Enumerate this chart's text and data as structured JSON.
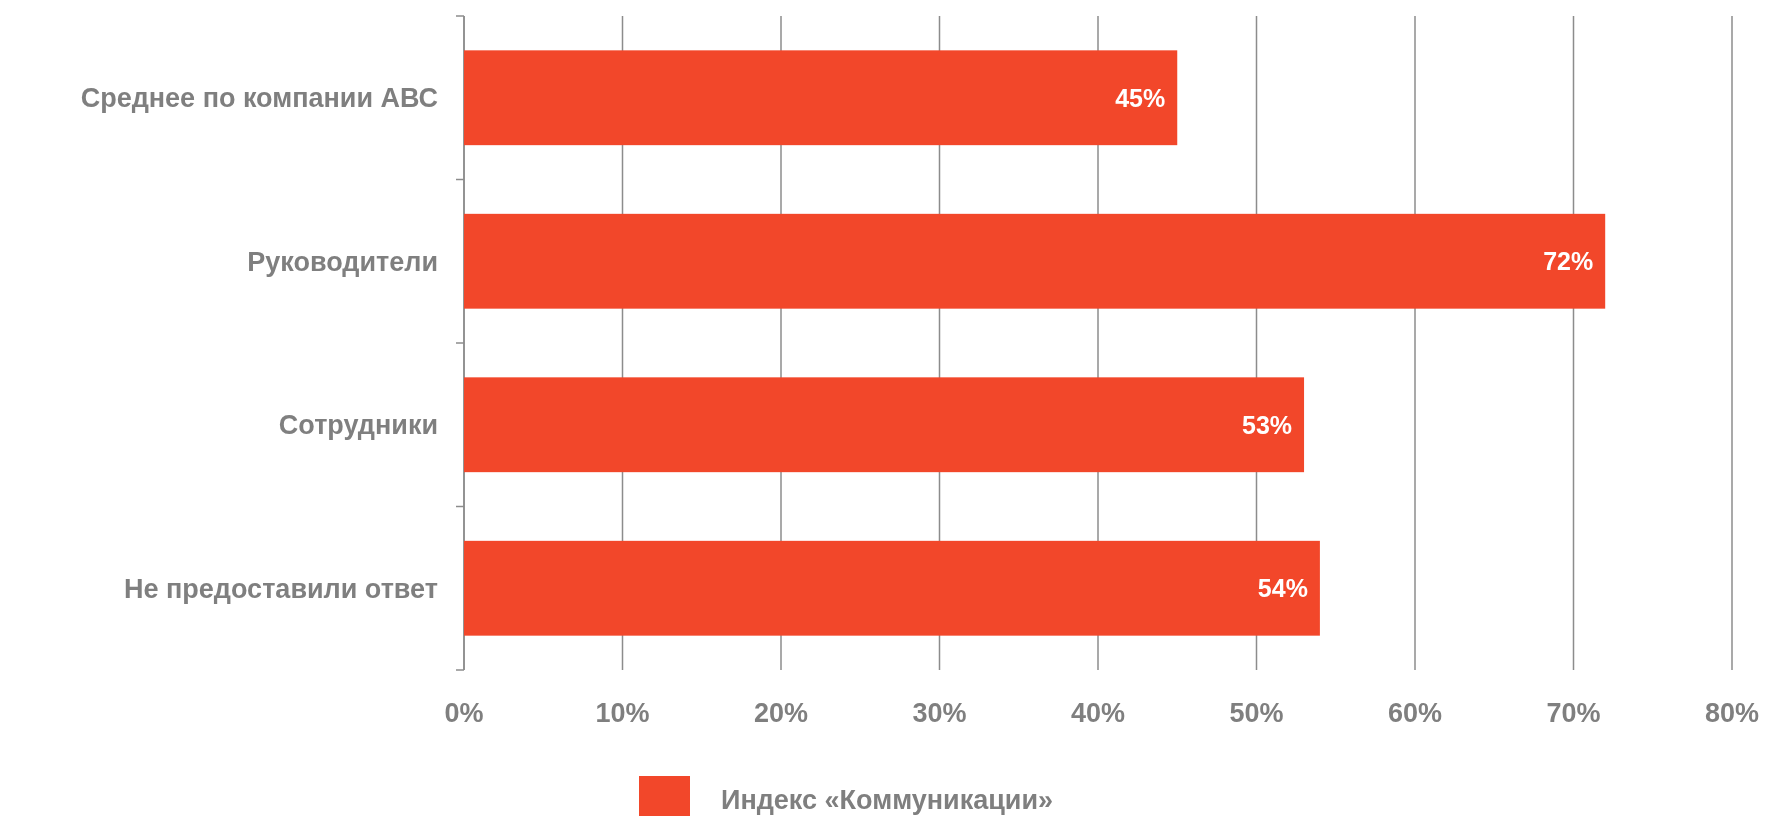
{
  "chart_data": {
    "type": "bar",
    "orientation": "horizontal",
    "categories": [
      "Среднее по компании АВС",
      "Руководители",
      "Сотрудники",
      "Не предоставили ответ"
    ],
    "series": [
      {
        "name": "Индекс «Коммуникации»",
        "color": "#f2472a",
        "values": [
          45,
          72,
          53,
          54
        ]
      }
    ],
    "xlim": [
      0,
      80
    ],
    "xticks": [
      {
        "value": 0,
        "label": "0%"
      },
      {
        "value": 10,
        "label": "10%"
      },
      {
        "value": 20,
        "label": "20%"
      },
      {
        "value": 30,
        "label": "30%"
      },
      {
        "value": 40,
        "label": "40%"
      },
      {
        "value": 50,
        "label": "50%"
      },
      {
        "value": 60,
        "label": "60%"
      },
      {
        "value": 70,
        "label": "70%"
      },
      {
        "value": 80,
        "label": "80%"
      }
    ],
    "value_labels": [
      "45%",
      "72%",
      "53%",
      "54%"
    ],
    "grid": "x",
    "legend": "bottom"
  }
}
